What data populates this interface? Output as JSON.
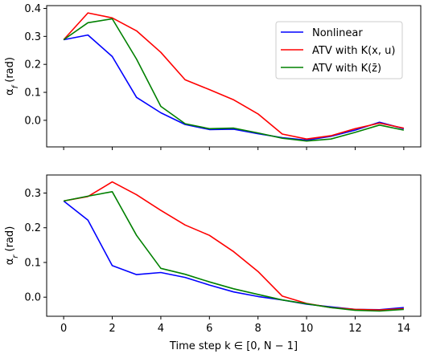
{
  "chart_data": [
    {
      "type": "line",
      "ylabel": "α_f (rad)",
      "xlabel": "",
      "x": [
        0,
        1,
        2,
        3,
        4,
        5,
        6,
        7,
        8,
        9,
        10,
        11,
        12,
        13,
        14
      ],
      "xlim": [
        -0.7,
        14.7
      ],
      "ylim": [
        -0.095,
        0.41
      ],
      "xticks": [
        0,
        2,
        4,
        6,
        8,
        10,
        12,
        14
      ],
      "xtick_labels": [
        "",
        "",
        "",
        "",
        "",
        "",
        "",
        ""
      ],
      "yticks": [
        0.0,
        0.1,
        0.2,
        0.3,
        0.4
      ],
      "ytick_labels": [
        "0.0",
        "0.1",
        "0.2",
        "0.3",
        "0.4"
      ],
      "grid": false,
      "legend_position": "top-right",
      "series": [
        {
          "name": "Nonlinear",
          "color": "#0000ff",
          "values": [
            0.288,
            0.305,
            0.228,
            0.082,
            0.027,
            -0.015,
            -0.033,
            -0.032,
            -0.048,
            -0.062,
            -0.071,
            -0.057,
            -0.035,
            -0.007,
            -0.03
          ]
        },
        {
          "name": "ATV with K(x, u)",
          "color": "#ff0000",
          "values": [
            0.288,
            0.384,
            0.366,
            0.32,
            0.243,
            0.145,
            0.11,
            0.073,
            0.023,
            -0.049,
            -0.067,
            -0.055,
            -0.03,
            -0.01,
            -0.028
          ]
        },
        {
          "name": "ATV with K(z̄)",
          "color": "#008000",
          "values": [
            0.288,
            0.349,
            0.363,
            0.219,
            0.05,
            -0.012,
            -0.03,
            -0.028,
            -0.045,
            -0.064,
            -0.074,
            -0.067,
            -0.043,
            -0.017,
            -0.035
          ]
        }
      ]
    },
    {
      "type": "line",
      "ylabel": "α_r (rad)",
      "xlabel": "Time step k ∈ [0, N − 1]",
      "x": [
        0,
        1,
        2,
        3,
        4,
        5,
        6,
        7,
        8,
        9,
        10,
        11,
        12,
        13,
        14
      ],
      "xlim": [
        -0.7,
        14.7
      ],
      "ylim": [
        -0.055,
        0.352
      ],
      "xticks": [
        0,
        2,
        4,
        6,
        8,
        10,
        12,
        14
      ],
      "xtick_labels": [
        "0",
        "2",
        "4",
        "6",
        "8",
        "10",
        "12",
        "14"
      ],
      "yticks": [
        0.0,
        0.1,
        0.2,
        0.3
      ],
      "ytick_labels": [
        "0.0",
        "0.1",
        "0.2",
        "0.3"
      ],
      "grid": false,
      "series": [
        {
          "color": "#0000ff",
          "values": [
            0.277,
            0.222,
            0.091,
            0.065,
            0.071,
            0.057,
            0.035,
            0.015,
            0.002,
            -0.008,
            -0.02,
            -0.028,
            -0.035,
            -0.036,
            -0.03
          ]
        },
        {
          "color": "#ff0000",
          "values": [
            0.277,
            0.29,
            0.332,
            0.295,
            0.25,
            0.208,
            0.178,
            0.131,
            0.074,
            0.003,
            -0.018,
            -0.03,
            -0.035,
            -0.037,
            -0.033
          ]
        },
        {
          "color": "#008000",
          "values": [
            0.277,
            0.291,
            0.304,
            0.178,
            0.083,
            0.066,
            0.044,
            0.024,
            0.008,
            -0.008,
            -0.019,
            -0.03,
            -0.038,
            -0.04,
            -0.035
          ]
        }
      ]
    }
  ]
}
